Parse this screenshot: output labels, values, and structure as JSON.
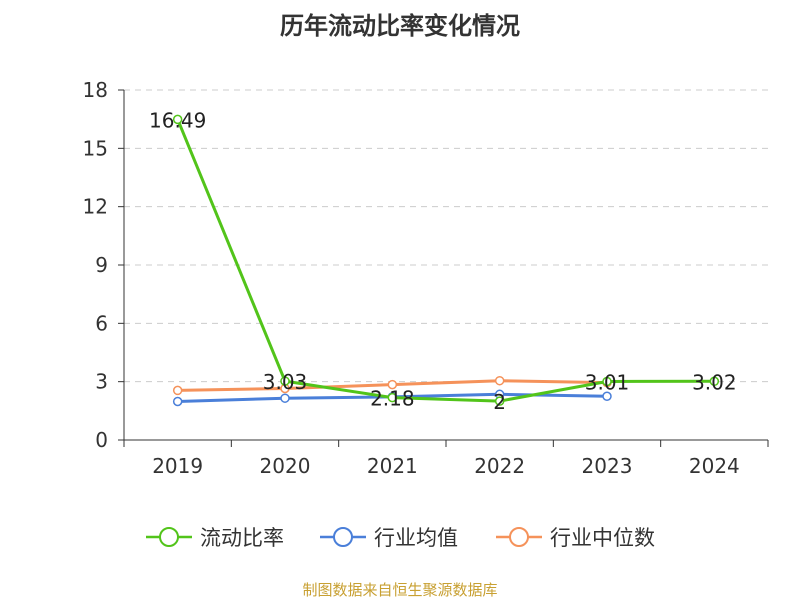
{
  "title": "历年流动比率变化情况",
  "source": "制图数据来自恒生聚源数据库",
  "chart_data": {
    "type": "line",
    "title": "历年流动比率变化情况",
    "xlabel": "",
    "ylabel": "",
    "categories": [
      "2019",
      "2020",
      "2021",
      "2022",
      "2023",
      "2024"
    ],
    "ylim": [
      0,
      18
    ],
    "yticks": [
      0,
      3,
      6,
      9,
      12,
      15,
      18
    ],
    "grid": true,
    "legend_position": "bottom",
    "series": [
      {
        "name": "流动比率",
        "color": "#52c41a",
        "values": [
          16.49,
          3.03,
          2.18,
          2,
          3.01,
          3.02
        ],
        "labels": [
          "16.49",
          "3.03",
          "2.18",
          "2",
          "3.01",
          "3.02"
        ]
      },
      {
        "name": "行业均值",
        "color": "#4a7fd9",
        "values": [
          1.98,
          2.15,
          2.22,
          2.35,
          2.25,
          null
        ]
      },
      {
        "name": "行业中位数",
        "color": "#f5925a",
        "values": [
          2.55,
          2.65,
          2.85,
          3.05,
          2.95,
          null
        ]
      }
    ]
  }
}
